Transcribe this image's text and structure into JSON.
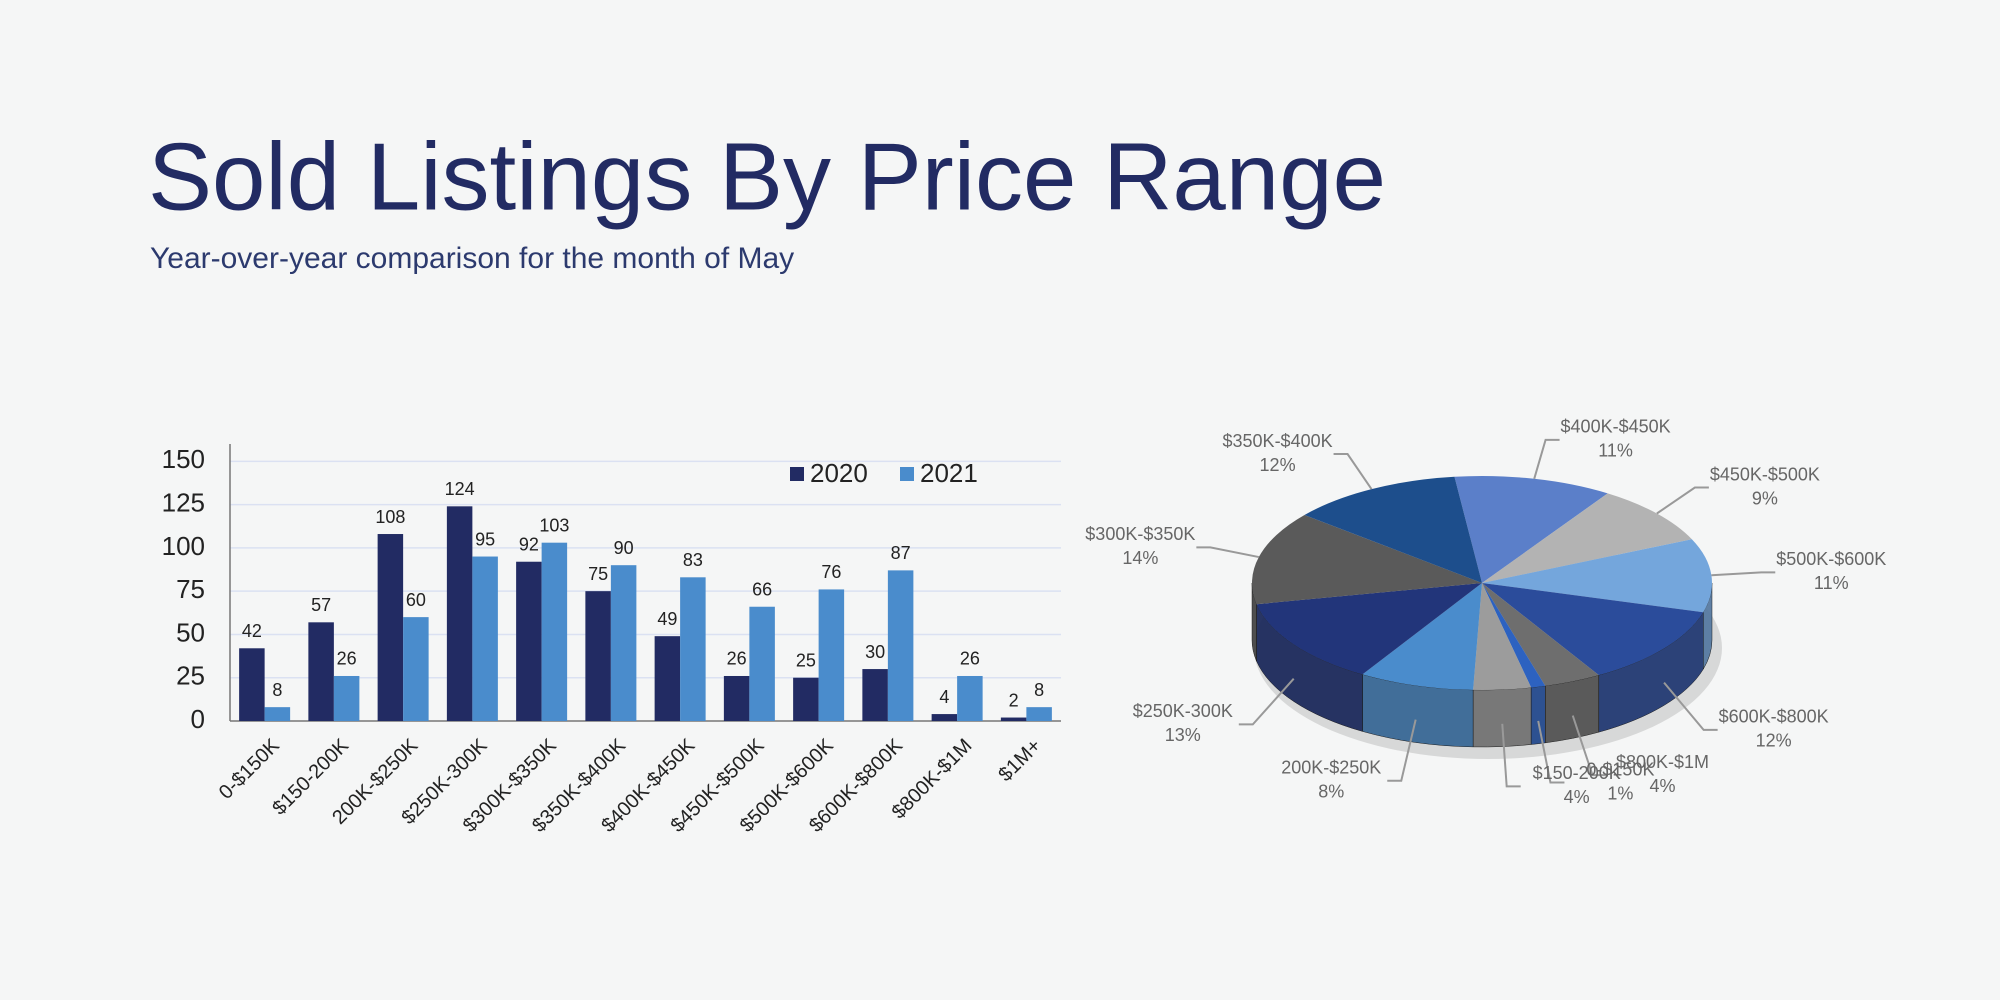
{
  "title": "Sold Listings By Price Range",
  "subtitle": "Year-over-year comparison for the month of May",
  "chart_data": [
    {
      "type": "bar",
      "categories": [
        "0-$150K",
        "$150-200K",
        "200K-$250K",
        "$250K-300K",
        "$300K-$350K",
        "$350K-$400K",
        "$400K-$450K",
        "$450K-$500K",
        "$500K-$600K",
        "$600K-$800K",
        "$800K-$1M",
        "$1M+"
      ],
      "series": [
        {
          "name": "2020",
          "color": "#222b63",
          "values": [
            42,
            57,
            108,
            124,
            92,
            75,
            49,
            26,
            25,
            30,
            4,
            2
          ]
        },
        {
          "name": "2021",
          "color": "#4a8ccc",
          "values": [
            8,
            26,
            60,
            95,
            103,
            90,
            83,
            66,
            76,
            87,
            26,
            8
          ]
        }
      ],
      "ylim": [
        0,
        160
      ],
      "yticks": [
        0,
        25,
        50,
        75,
        100,
        125,
        150
      ],
      "grid": true,
      "legend": "upper right"
    },
    {
      "type": "pie",
      "categories": [
        "$400K-$450K",
        "$450K-$500K",
        "$500K-$600K",
        "$600K-$800K",
        "$800K-$1M",
        "0-$150K",
        "$150-200K",
        "200K-$250K",
        "$250K-300K",
        "$300K-$350K",
        "$350K-$400K"
      ],
      "values": [
        11,
        9,
        11,
        12,
        4,
        1,
        4,
        8,
        13,
        14,
        12
      ],
      "value_labels": [
        "11%",
        "9%",
        "11%",
        "12%",
        "4%",
        "1%",
        "4%",
        "8%",
        "13%",
        "14%",
        "12%"
      ],
      "colors": [
        "#5b7fc9",
        "#b3b3b3",
        "#74a6dc",
        "#2b4c9b",
        "#6e6e6e",
        "#2d62c0",
        "#9c9c9c",
        "#4a8ccc",
        "#22357a",
        "#5a5a5a",
        "#1d4e8c"
      ]
    }
  ]
}
